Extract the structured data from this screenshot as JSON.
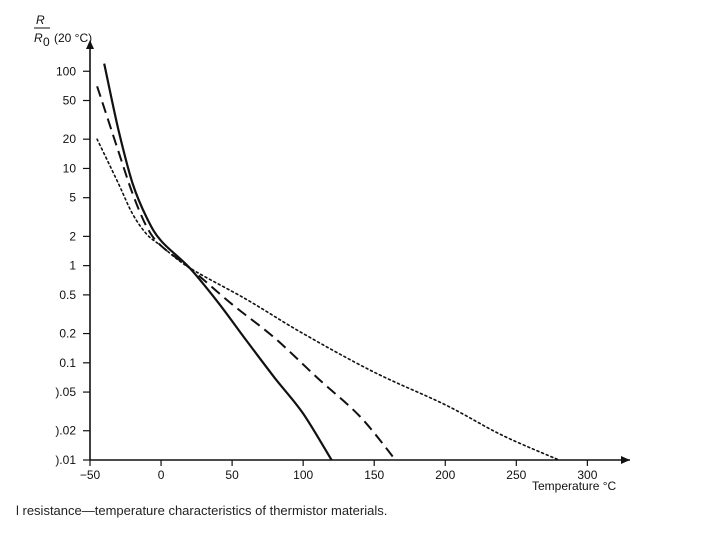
{
  "chart_data": {
    "type": "line",
    "title": "",
    "caption": "l resistance—temperature characteristics of thermistor materials.",
    "ylabel_parts": {
      "numerator": "R",
      "denominator": "R",
      "subscript": "0",
      "suffix": "(20 °C)"
    },
    "xlabel": "Temperature °C",
    "x_ticks": [
      -50,
      0,
      50,
      100,
      150,
      200,
      250,
      300
    ],
    "x_tick_labels": [
      "−50",
      "0",
      "50",
      "100",
      "150",
      "200",
      "250",
      "300"
    ],
    "y_ticks": [
      100,
      50,
      20,
      10,
      5,
      2,
      1,
      0.5,
      0.2,
      0.1,
      0.05,
      0.02,
      0.01
    ],
    "y_tick_labels": [
      "100",
      "50",
      "20",
      "10",
      "5",
      "2",
      "1",
      "0.5",
      "0.2",
      "0.1",
      ").05",
      ").02",
      ").01"
    ],
    "xlim": [
      -50,
      330
    ],
    "ylim": [
      0.01,
      200
    ],
    "yscale": "log",
    "grid": false,
    "series": [
      {
        "name": "solid",
        "style": "solid",
        "points": [
          [
            -40,
            120
          ],
          [
            -30,
            25
          ],
          [
            -20,
            7
          ],
          [
            -10,
            3.1
          ],
          [
            0,
            1.8
          ],
          [
            20,
            0.95
          ],
          [
            40,
            0.42
          ],
          [
            60,
            0.17
          ],
          [
            80,
            0.07
          ],
          [
            100,
            0.03
          ],
          [
            120,
            0.01
          ]
        ]
      },
      {
        "name": "dashed",
        "style": "dashed",
        "points": [
          [
            -45,
            70
          ],
          [
            -30,
            15
          ],
          [
            -20,
            5.5
          ],
          [
            -10,
            2.5
          ],
          [
            0,
            1.6
          ],
          [
            20,
            0.95
          ],
          [
            50,
            0.4
          ],
          [
            80,
            0.18
          ],
          [
            110,
            0.07
          ],
          [
            140,
            0.028
          ],
          [
            165,
            0.01
          ]
        ]
      },
      {
        "name": "dotted",
        "style": "dotted",
        "points": [
          [
            -45,
            20
          ],
          [
            -30,
            7
          ],
          [
            -20,
            3.4
          ],
          [
            -10,
            2.1
          ],
          [
            0,
            1.6
          ],
          [
            20,
            0.95
          ],
          [
            60,
            0.45
          ],
          [
            100,
            0.2
          ],
          [
            150,
            0.08
          ],
          [
            200,
            0.037
          ],
          [
            240,
            0.018
          ],
          [
            280,
            0.01
          ]
        ]
      }
    ]
  }
}
